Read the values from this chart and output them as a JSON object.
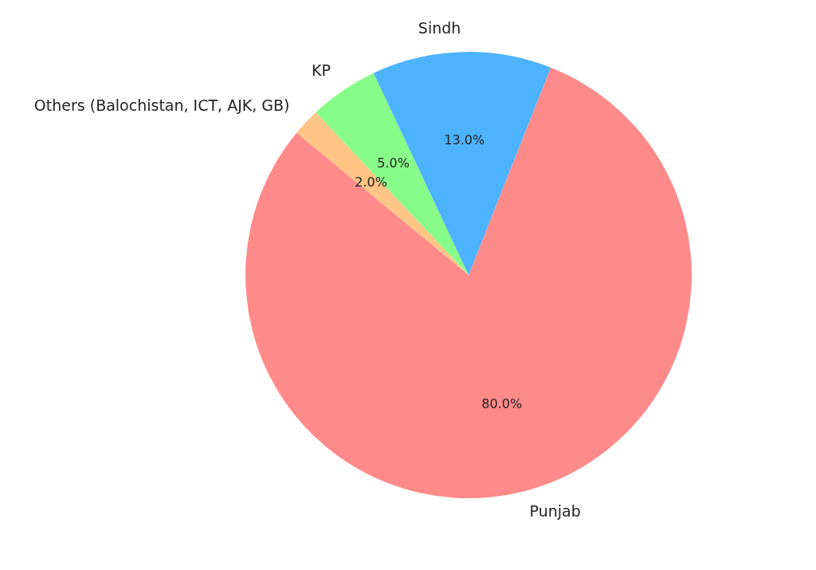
{
  "chart_data": {
    "type": "pie",
    "categories": [
      "Punjab",
      "Others (Balochistan, ICT, AJK, GB)",
      "KP",
      "Sindh"
    ],
    "values": [
      80,
      2,
      5,
      13
    ],
    "colors": [
      "#ff8a8a",
      "#ffc585",
      "#88fc88",
      "#4db3ff"
    ],
    "value_labels": [
      "80.0%",
      "2.0%",
      "5.0%",
      "13.0%"
    ]
  }
}
